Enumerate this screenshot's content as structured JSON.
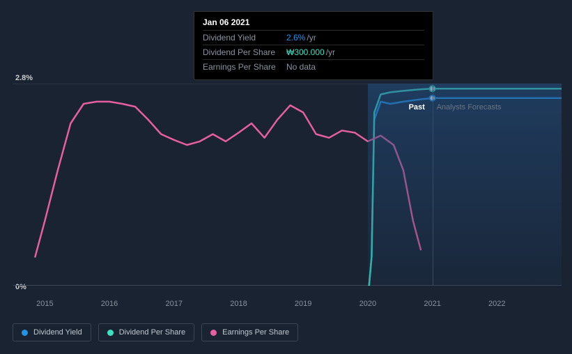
{
  "tooltip": {
    "date": "Jan 06 2021",
    "rows": [
      {
        "label": "Dividend Yield",
        "value": "2.6%",
        "unit": "/yr",
        "cls": "highlight-blue"
      },
      {
        "label": "Dividend Per Share",
        "value": "₩300.000",
        "unit": "/yr",
        "cls": "highlight-teal"
      },
      {
        "label": "Earnings Per Share",
        "value": "No data",
        "unit": "",
        "cls": ""
      }
    ]
  },
  "chart": {
    "background_color": "#1a2332",
    "grid_color": "#2a3545",
    "axis_color": "#3a4555",
    "label_color": "#cccccc",
    "tick_color": "#8a93a0",
    "y_top_label": "2.8%",
    "y_bot_label": "0%",
    "x_range": [
      2014.5,
      2023.0
    ],
    "y_range": [
      0,
      2.8
    ],
    "x_ticks": [
      2015,
      2016,
      2017,
      2018,
      2019,
      2020,
      2021,
      2022
    ],
    "forecast_split": 2021.0,
    "past_label": "Past",
    "forecast_label": "Analysts Forecasts",
    "fill_start": 2020.0,
    "fill_gradient_top": "rgba(35,80,130,0.55)",
    "fill_gradient_bot": "rgba(25,50,80,0.25)",
    "series": [
      {
        "name": "Dividend Yield",
        "color": "#2393e6",
        "stroke_width": 2.5,
        "marker_at_split": true,
        "marker_y": 2.6,
        "data": [
          [
            2020.02,
            0.0
          ],
          [
            2020.06,
            0.4
          ],
          [
            2020.1,
            2.3
          ],
          [
            2020.2,
            2.55
          ],
          [
            2020.35,
            2.52
          ],
          [
            2020.55,
            2.55
          ],
          [
            2020.8,
            2.58
          ],
          [
            2021.0,
            2.6
          ],
          [
            2021.5,
            2.6
          ],
          [
            2022.0,
            2.6
          ],
          [
            2022.5,
            2.6
          ],
          [
            2023.0,
            2.6
          ]
        ]
      },
      {
        "name": "Dividend Per Share",
        "color": "#3de0c2",
        "stroke_width": 2.5,
        "marker_at_split": true,
        "marker_y": 2.73,
        "data": [
          [
            2020.02,
            0.0
          ],
          [
            2020.06,
            0.4
          ],
          [
            2020.1,
            2.4
          ],
          [
            2020.2,
            2.65
          ],
          [
            2020.35,
            2.68
          ],
          [
            2020.55,
            2.7
          ],
          [
            2020.8,
            2.72
          ],
          [
            2021.0,
            2.73
          ],
          [
            2021.5,
            2.73
          ],
          [
            2022.0,
            2.73
          ],
          [
            2022.5,
            2.73
          ],
          [
            2023.0,
            2.73
          ]
        ]
      },
      {
        "name": "Earnings Per Share",
        "color": "#e65fa0",
        "stroke_width": 2.5,
        "marker_at_split": false,
        "data": [
          [
            2014.85,
            0.4
          ],
          [
            2015.0,
            0.9
          ],
          [
            2015.2,
            1.6
          ],
          [
            2015.4,
            2.25
          ],
          [
            2015.6,
            2.52
          ],
          [
            2015.8,
            2.55
          ],
          [
            2016.0,
            2.55
          ],
          [
            2016.2,
            2.52
          ],
          [
            2016.4,
            2.48
          ],
          [
            2016.6,
            2.3
          ],
          [
            2016.8,
            2.1
          ],
          [
            2017.0,
            2.02
          ],
          [
            2017.2,
            1.95
          ],
          [
            2017.4,
            2.0
          ],
          [
            2017.6,
            2.1
          ],
          [
            2017.8,
            2.0
          ],
          [
            2018.0,
            2.12
          ],
          [
            2018.2,
            2.25
          ],
          [
            2018.4,
            2.05
          ],
          [
            2018.6,
            2.3
          ],
          [
            2018.8,
            2.5
          ],
          [
            2019.0,
            2.4
          ],
          [
            2019.2,
            2.1
          ],
          [
            2019.4,
            2.05
          ],
          [
            2019.6,
            2.15
          ],
          [
            2019.8,
            2.12
          ],
          [
            2020.0,
            2.0
          ],
          [
            2020.2,
            2.08
          ],
          [
            2020.4,
            1.95
          ],
          [
            2020.55,
            1.6
          ],
          [
            2020.7,
            0.9
          ],
          [
            2020.82,
            0.5
          ]
        ]
      }
    ]
  },
  "legend": [
    {
      "name": "Dividend Yield",
      "color": "#2393e6"
    },
    {
      "name": "Dividend Per Share",
      "color": "#3de0c2"
    },
    {
      "name": "Earnings Per Share",
      "color": "#e65fa0"
    }
  ]
}
